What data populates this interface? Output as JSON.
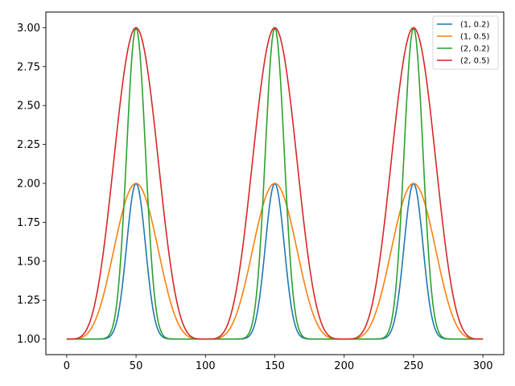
{
  "chart_data": {
    "type": "line",
    "title": "",
    "xlabel": "",
    "ylabel": "",
    "xlim": [
      -15,
      315
    ],
    "ylim": [
      0.9,
      3.1
    ],
    "x_ticks": [
      0,
      50,
      100,
      150,
      200,
      250,
      300
    ],
    "y_ticks": [
      1.0,
      1.25,
      1.5,
      1.75,
      2.0,
      2.25,
      2.5,
      2.75,
      3.0
    ],
    "legend": {
      "position": "upper-right"
    },
    "grid": false,
    "peaks_at": [
      50,
      150,
      250
    ],
    "series": [
      {
        "name": "(1, 0.2)",
        "color": "#1f77b4",
        "amplitude": 1,
        "width": 0.2,
        "peak_value": 2.0,
        "base_value": 1.0
      },
      {
        "name": "(1, 0.5)",
        "color": "#ff7f0e",
        "amplitude": 1,
        "width": 0.5,
        "peak_value": 2.0,
        "base_value": 1.0
      },
      {
        "name": "(2, 0.2)",
        "color": "#2ca02c",
        "amplitude": 2,
        "width": 0.2,
        "peak_value": 3.0,
        "base_value": 1.0
      },
      {
        "name": "(2, 0.5)",
        "color": "#d62728",
        "amplitude": 2,
        "width": 0.5,
        "peak_value": 3.0,
        "base_value": 1.0
      }
    ]
  }
}
